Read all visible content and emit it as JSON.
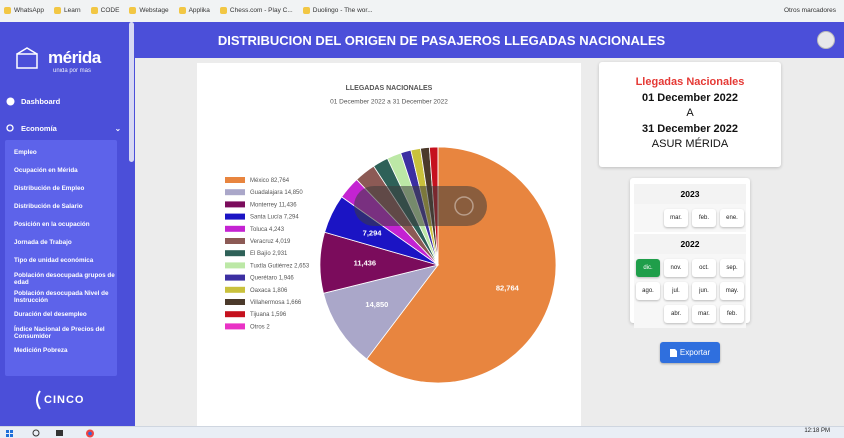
{
  "bookmarks": [
    "WhatsApp",
    "Learn",
    "CODE",
    "Webstage",
    "Applika",
    "Chess.com - Play C...",
    "Duolingo - The wor...",
    "Otros marcadores"
  ],
  "sidebar": {
    "logo": "mérida",
    "tagline": "unida por más",
    "menu": [
      "Dashboard",
      "Economía"
    ],
    "submenu": [
      "Empleo",
      "Ocupación en Mérida",
      "Distribución de Empleo",
      "Distribución de Salario",
      "Posición en la ocupación",
      "Jornada de Trabajo",
      "Tipo de unidad económica",
      "Población desocupada grupos de edad",
      "Población desocupada Nivel de Instrucción",
      "Duración del desempleo",
      "Índice Nacional de Precios del Consumidor",
      "Medición Pobreza"
    ],
    "footer": "CINCO"
  },
  "header": {
    "title": "DISTRIBUCION DEL ORIGEN DE PASAJEROS LLEGADAS NACIONALES"
  },
  "chart_data": {
    "type": "pie",
    "title": "LLEGADAS NACIONALES",
    "subtitle": "01 December 2022  a 31 December 2022",
    "categories": [
      "México",
      "Guadalajara",
      "Monterrey",
      "Santa Lucía",
      "Toluca",
      "Veracruz",
      "El Bajío",
      "Tuxtla Gutiérrez",
      "Querétaro",
      "Oaxaca",
      "Villahermosa",
      "Tijuana",
      "Otros"
    ],
    "values": [
      82764,
      14850,
      11436,
      7294,
      4243,
      4019,
      2931,
      2653,
      1946,
      1806,
      1666,
      1596,
      2
    ],
    "value_labels": [
      "82,764",
      "14,850",
      "11,436",
      "7,294",
      "4,243",
      "4,019",
      "2,931",
      "2,653",
      "1,946",
      "1,806",
      "1,666",
      "1,596",
      "2"
    ],
    "colors": [
      "#e8853f",
      "#aaa7c9",
      "#7b0c5c",
      "#1b14c4",
      "#c423d2",
      "#8c5a55",
      "#2e6158",
      "#bce8a6",
      "#3c2fa2",
      "#c9c13c",
      "#4b3a2b",
      "#c5111e",
      "#e932c5"
    ]
  },
  "summary": {
    "heading": "Llegadas Nacionales",
    "start": "01 December 2022",
    "separator": "A",
    "end": "31 December 2022",
    "airport": "ASUR MÉRIDA"
  },
  "calendar": [
    {
      "year": "2023",
      "months": [
        "mar.",
        "feb.",
        "ene."
      ]
    },
    {
      "year": "2022",
      "months": [
        "dic.",
        "nov.",
        "oct.",
        "sep.",
        "ago.",
        "jul.",
        "jun.",
        "may.",
        "abr.",
        "mar.",
        "feb."
      ],
      "selected": 0
    }
  ],
  "export_button": "Exportar",
  "taskbar": {
    "time": "12:18 PM"
  }
}
